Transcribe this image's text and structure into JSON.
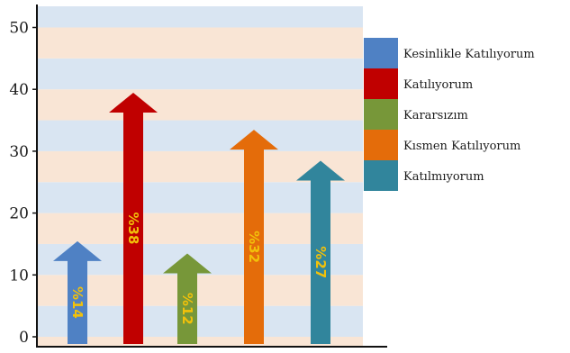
{
  "chart_data": {
    "type": "bar",
    "categories": [
      "Kesinlikle Katılıyorum",
      "Katılıyorum",
      "Kararsızım",
      "Kısmen Katılıyorum",
      "Katılmıyorum"
    ],
    "values": [
      14,
      38,
      12,
      32,
      27
    ],
    "data_labels": [
      "%14",
      "%38",
      "%12",
      "%32",
      "%27"
    ],
    "colors": [
      "#4f81c4",
      "#c00000",
      "#779739",
      "#e46c0a",
      "#31859c"
    ],
    "ylim": [
      0,
      50
    ],
    "yticks": [
      0,
      10,
      20,
      30,
      40,
      50
    ],
    "title": "",
    "xlabel": "",
    "ylabel": "",
    "legend_position": "right",
    "mark_style": "arrow",
    "background_bands": [
      "#f9e5d5",
      "#d9e5f2"
    ]
  }
}
